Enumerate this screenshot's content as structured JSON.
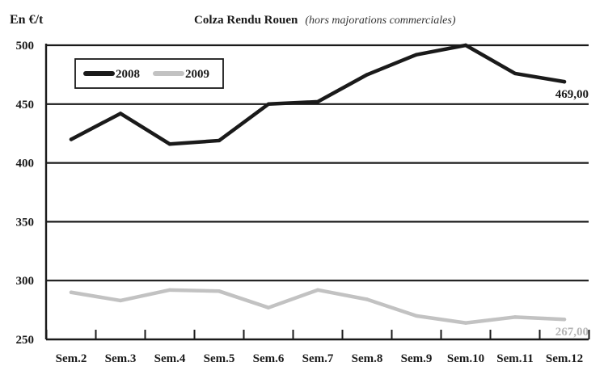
{
  "chart_data": {
    "type": "line",
    "title": "Colza Rendu Rouen",
    "subtitle": "(hors majorations commerciales)",
    "ylabel": "En €/t",
    "xlabel": "",
    "ylim": [
      250,
      500
    ],
    "yticks": [
      250,
      300,
      350,
      400,
      450,
      500
    ],
    "grid": true,
    "legend_position": "top-left",
    "categories": [
      "Sem.2",
      "Sem.3",
      "Sem.4",
      "Sem.5",
      "Sem.6",
      "Sem.7",
      "Sem.8",
      "Sem.9",
      "Sem.10",
      "Sem.11",
      "Sem.12"
    ],
    "series": [
      {
        "name": "2008",
        "color": "#1a1a1a",
        "values": [
          420,
          442,
          416,
          419,
          450,
          452,
          475,
          492,
          500,
          476,
          469
        ],
        "end_label": "469,00"
      },
      {
        "name": "2009",
        "color": "#c2c2c2",
        "values": [
          290,
          283,
          292,
          291,
          277,
          292,
          284,
          270,
          264,
          269,
          267
        ],
        "end_label": "267,00"
      }
    ]
  }
}
